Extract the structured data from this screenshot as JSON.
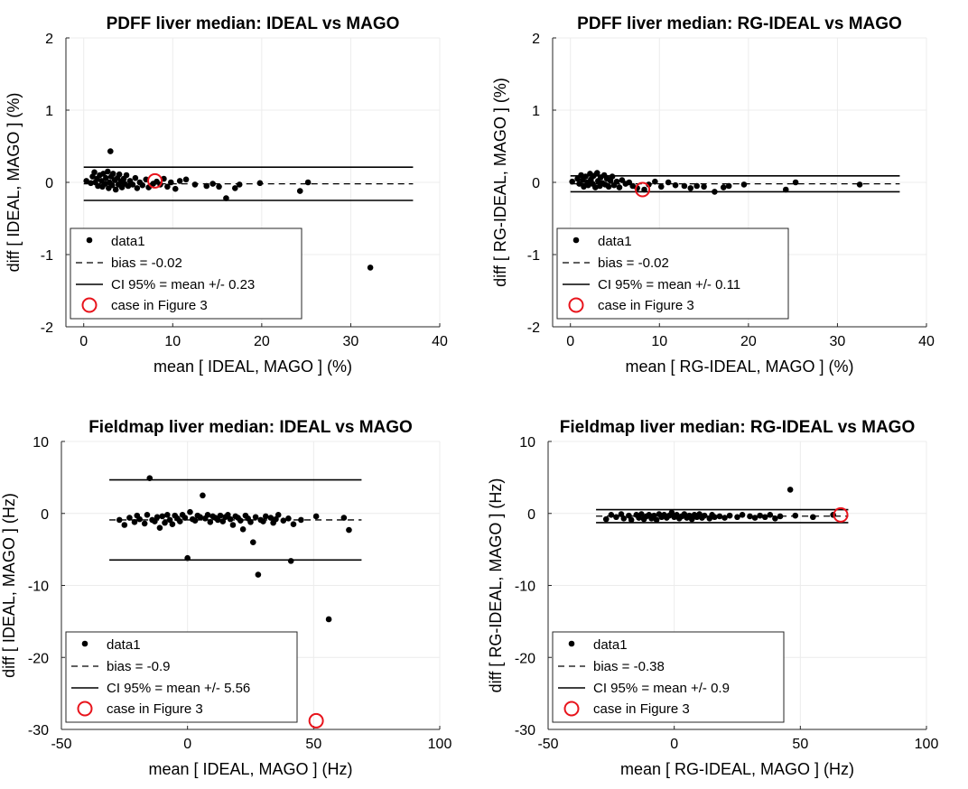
{
  "chart_data": [
    {
      "type": "scatter",
      "title": "PDFF liver median: IDEAL vs MAGO",
      "xlabel": "mean [ IDEAL, MAGO ] (%)",
      "ylabel": "diff [ IDEAL, MAGO ] (%)",
      "xlim": [
        -2,
        40
      ],
      "ylim": [
        -2,
        2
      ],
      "xticks": [
        0,
        10,
        20,
        30,
        40
      ],
      "yticks": [
        -2,
        -1,
        0,
        1,
        2
      ],
      "bias": -0.02,
      "ci_halfwidth": 0.23,
      "line_x_range": [
        0,
        37
      ],
      "points": [
        [
          0.3,
          0.02
        ],
        [
          0.8,
          -0.01
        ],
        [
          1.0,
          0.08
        ],
        [
          1.2,
          0.14
        ],
        [
          1.3,
          0.0
        ],
        [
          1.5,
          0.05
        ],
        [
          1.6,
          -0.05
        ],
        [
          1.8,
          0.1
        ],
        [
          2.0,
          0.02
        ],
        [
          2.1,
          -0.06
        ],
        [
          2.2,
          0.12
        ],
        [
          2.4,
          -0.02
        ],
        [
          2.5,
          0.06
        ],
        [
          2.7,
          0.15
        ],
        [
          2.8,
          -0.08
        ],
        [
          2.9,
          0.0
        ],
        [
          3.0,
          0.43
        ],
        [
          3.1,
          0.08
        ],
        [
          3.2,
          -0.04
        ],
        [
          3.3,
          0.12
        ],
        [
          3.5,
          0.03
        ],
        [
          3.6,
          -0.1
        ],
        [
          3.8,
          0.06
        ],
        [
          3.9,
          -0.03
        ],
        [
          4.0,
          0.11
        ],
        [
          4.2,
          0.01
        ],
        [
          4.3,
          -0.07
        ],
        [
          4.5,
          0.05
        ],
        [
          4.6,
          -0.02
        ],
        [
          4.8,
          0.1
        ],
        [
          5.0,
          -0.05
        ],
        [
          5.2,
          0.02
        ],
        [
          5.5,
          -0.03
        ],
        [
          5.8,
          0.06
        ],
        [
          6.0,
          -0.08
        ],
        [
          6.3,
          0.0
        ],
        [
          6.6,
          -0.04
        ],
        [
          7.0,
          0.04
        ],
        [
          7.3,
          -0.07
        ],
        [
          7.8,
          -0.02
        ],
        [
          8.2,
          0.01
        ],
        [
          8.6,
          -0.03
        ],
        [
          9.0,
          0.05
        ],
        [
          9.4,
          -0.06
        ],
        [
          9.8,
          0.0
        ],
        [
          10.3,
          -0.09
        ],
        [
          10.8,
          0.02
        ],
        [
          11.5,
          0.04
        ],
        [
          12.5,
          -0.03
        ],
        [
          13.8,
          -0.05
        ],
        [
          14.5,
          -0.02
        ],
        [
          15.2,
          -0.06
        ],
        [
          16.0,
          -0.22
        ],
        [
          17.0,
          -0.08
        ],
        [
          17.5,
          -0.03
        ],
        [
          19.8,
          -0.01
        ],
        [
          24.3,
          -0.12
        ],
        [
          25.2,
          0.0
        ],
        [
          32.2,
          -1.18
        ]
      ],
      "case": [
        8.0,
        0.02
      ],
      "legend": [
        "data1",
        "bias = -0.02",
        "CI 95% = mean +/- 0.23",
        "case in Figure 3"
      ]
    },
    {
      "type": "scatter",
      "title": "PDFF liver median: RG-IDEAL vs MAGO",
      "xlabel": "mean [ RG-IDEAL, MAGO ] (%)",
      "ylabel": "diff [ RG-IDEAL, MAGO ] (%)",
      "xlim": [
        -2,
        40
      ],
      "ylim": [
        -2,
        2
      ],
      "xticks": [
        0,
        10,
        20,
        30,
        40
      ],
      "yticks": [
        -2,
        -1,
        0,
        1,
        2
      ],
      "bias": -0.02,
      "ci_halfwidth": 0.11,
      "line_x_range": [
        0,
        37
      ],
      "points": [
        [
          0.2,
          0.01
        ],
        [
          0.8,
          0.05
        ],
        [
          1.0,
          -0.02
        ],
        [
          1.2,
          0.1
        ],
        [
          1.4,
          0.03
        ],
        [
          1.5,
          -0.06
        ],
        [
          1.7,
          0.08
        ],
        [
          1.9,
          0.0
        ],
        [
          2.0,
          -0.04
        ],
        [
          2.2,
          0.12
        ],
        [
          2.3,
          0.04
        ],
        [
          2.5,
          -0.02
        ],
        [
          2.6,
          0.09
        ],
        [
          2.8,
          -0.07
        ],
        [
          3.0,
          0.13
        ],
        [
          3.1,
          0.02
        ],
        [
          3.3,
          -0.05
        ],
        [
          3.4,
          0.07
        ],
        [
          3.6,
          -0.01
        ],
        [
          3.8,
          0.1
        ],
        [
          3.9,
          -0.03
        ],
        [
          4.1,
          0.05
        ],
        [
          4.3,
          -0.06
        ],
        [
          4.5,
          0.02
        ],
        [
          4.7,
          0.08
        ],
        [
          4.9,
          -0.04
        ],
        [
          5.2,
          0.01
        ],
        [
          5.5,
          -0.07
        ],
        [
          5.8,
          0.03
        ],
        [
          6.2,
          -0.02
        ],
        [
          6.6,
          0.0
        ],
        [
          7.0,
          -0.05
        ],
        [
          7.5,
          -0.08
        ],
        [
          8.3,
          -0.1
        ],
        [
          8.8,
          -0.03
        ],
        [
          9.5,
          0.01
        ],
        [
          10.2,
          -0.06
        ],
        [
          11.0,
          0.0
        ],
        [
          11.8,
          -0.04
        ],
        [
          12.8,
          -0.05
        ],
        [
          13.5,
          -0.08
        ],
        [
          14.2,
          -0.05
        ],
        [
          15.0,
          -0.06
        ],
        [
          16.2,
          -0.13
        ],
        [
          17.2,
          -0.07
        ],
        [
          17.8,
          -0.05
        ],
        [
          19.5,
          -0.03
        ],
        [
          24.2,
          -0.1
        ],
        [
          25.3,
          0.0
        ],
        [
          32.5,
          -0.03
        ]
      ],
      "case": [
        8.1,
        -0.1
      ],
      "legend": [
        "data1",
        "bias = -0.02",
        "CI 95% = mean +/- 0.11",
        "case in Figure 3"
      ]
    },
    {
      "type": "scatter",
      "title": "Fieldmap liver median: IDEAL vs MAGO",
      "xlabel": "mean [ IDEAL, MAGO ] (Hz)",
      "ylabel": "diff [ IDEAL, MAGO ] (Hz)",
      "xlim": [
        -50,
        100
      ],
      "ylim": [
        -30,
        10
      ],
      "xticks": [
        -50,
        0,
        50,
        100
      ],
      "yticks": [
        -30,
        -20,
        -10,
        0,
        10
      ],
      "bias": -0.9,
      "ci_halfwidth": 5.56,
      "line_x_range": [
        -31,
        69
      ],
      "points": [
        [
          -27,
          -0.9
        ],
        [
          -25,
          -1.6
        ],
        [
          -23,
          -0.6
        ],
        [
          -21,
          -1.2
        ],
        [
          -20,
          -0.3
        ],
        [
          -19,
          -0.8
        ],
        [
          -17,
          -1.4
        ],
        [
          -16,
          -0.2
        ],
        [
          -15,
          4.9
        ],
        [
          -14,
          -0.9
        ],
        [
          -13,
          -1.1
        ],
        [
          -12,
          -0.5
        ],
        [
          -11,
          -2.0
        ],
        [
          -10,
          -0.4
        ],
        [
          -9,
          -1.3
        ],
        [
          -8,
          -0.2
        ],
        [
          -7,
          -0.9
        ],
        [
          -6,
          -1.5
        ],
        [
          -5,
          -0.3
        ],
        [
          -4,
          -0.7
        ],
        [
          -3,
          -1.1
        ],
        [
          -2,
          -0.2
        ],
        [
          -1,
          -0.6
        ],
        [
          0,
          -6.2
        ],
        [
          1,
          0.2
        ],
        [
          2,
          -0.8
        ],
        [
          3,
          -1.0
        ],
        [
          4,
          -0.3
        ],
        [
          5,
          -0.5
        ],
        [
          6,
          2.5
        ],
        [
          7,
          -0.7
        ],
        [
          8,
          -0.2
        ],
        [
          9,
          -1.2
        ],
        [
          10,
          -0.4
        ],
        [
          11,
          -0.6
        ],
        [
          12,
          -0.9
        ],
        [
          13,
          -0.3
        ],
        [
          14,
          -1.1
        ],
        [
          15,
          -0.5
        ],
        [
          16,
          -0.2
        ],
        [
          17,
          -0.8
        ],
        [
          18,
          -1.6
        ],
        [
          19,
          -0.4
        ],
        [
          20,
          -0.6
        ],
        [
          21,
          -1.0
        ],
        [
          22,
          -2.2
        ],
        [
          23,
          -0.3
        ],
        [
          24,
          -0.7
        ],
        [
          25,
          -1.2
        ],
        [
          26,
          -4.0
        ],
        [
          27,
          -0.5
        ],
        [
          28,
          -8.5
        ],
        [
          29,
          -0.9
        ],
        [
          30,
          -1.1
        ],
        [
          31,
          -0.4
        ],
        [
          33,
          -0.6
        ],
        [
          34,
          -1.3
        ],
        [
          35,
          -0.8
        ],
        [
          36,
          -0.2
        ],
        [
          38,
          -1.0
        ],
        [
          40,
          -0.7
        ],
        [
          41,
          -6.6
        ],
        [
          42,
          -1.5
        ],
        [
          45,
          -0.9
        ],
        [
          51,
          -0.4
        ],
        [
          56,
          -14.7
        ],
        [
          62,
          -0.6
        ],
        [
          64,
          -2.3
        ]
      ],
      "case": [
        51,
        -28.8
      ],
      "legend": [
        "data1",
        "bias = -0.9",
        "CI 95% = mean +/- 5.56",
        "case in Figure 3"
      ]
    },
    {
      "type": "scatter",
      "title": "Fieldmap liver median: RG-IDEAL vs MAGO",
      "xlabel": "mean [ RG-IDEAL, MAGO ] (Hz)",
      "ylabel": "diff [ RG-IDEAL, MAGO ] (Hz)",
      "xlim": [
        -50,
        100
      ],
      "ylim": [
        -30,
        10
      ],
      "xticks": [
        -50,
        0,
        50,
        100
      ],
      "yticks": [
        -30,
        -20,
        -10,
        0,
        10
      ],
      "bias": -0.38,
      "ci_halfwidth": 0.9,
      "line_x_range": [
        -31,
        69
      ],
      "points": [
        [
          -27,
          -0.8
        ],
        [
          -25,
          -0.2
        ],
        [
          -23,
          -0.5
        ],
        [
          -21,
          -0.1
        ],
        [
          -20,
          -0.7
        ],
        [
          -18,
          -0.3
        ],
        [
          -17,
          -0.9
        ],
        [
          -15,
          -0.2
        ],
        [
          -14,
          -0.6
        ],
        [
          -13,
          -0.1
        ],
        [
          -12,
          -0.8
        ],
        [
          -11,
          -0.4
        ],
        [
          -10,
          -0.2
        ],
        [
          -9,
          -0.7
        ],
        [
          -8,
          -0.3
        ],
        [
          -7,
          -0.9
        ],
        [
          -6,
          -0.1
        ],
        [
          -5,
          -0.5
        ],
        [
          -4,
          -0.2
        ],
        [
          -3,
          -0.6
        ],
        [
          -2,
          -0.3
        ],
        [
          -1,
          0.1
        ],
        [
          0,
          -0.5
        ],
        [
          1,
          -0.2
        ],
        [
          2,
          -0.7
        ],
        [
          3,
          -0.4
        ],
        [
          4,
          -0.1
        ],
        [
          5,
          -0.6
        ],
        [
          6,
          -0.3
        ],
        [
          7,
          -0.8
        ],
        [
          8,
          -0.2
        ],
        [
          9,
          -0.5
        ],
        [
          10,
          -0.1
        ],
        [
          11,
          -0.6
        ],
        [
          12,
          -0.3
        ],
        [
          14,
          -0.7
        ],
        [
          15,
          -0.2
        ],
        [
          16,
          -0.5
        ],
        [
          18,
          -0.4
        ],
        [
          20,
          -0.6
        ],
        [
          22,
          -0.3
        ],
        [
          25,
          -0.5
        ],
        [
          27,
          -0.2
        ],
        [
          30,
          -0.4
        ],
        [
          32,
          -0.6
        ],
        [
          34,
          -0.3
        ],
        [
          36,
          -0.5
        ],
        [
          38,
          -0.2
        ],
        [
          40,
          -0.7
        ],
        [
          42,
          -0.4
        ],
        [
          46,
          3.3
        ],
        [
          48,
          -0.3
        ],
        [
          55,
          -0.5
        ],
        [
          63,
          -0.2
        ]
      ],
      "case": [
        66,
        -0.2
      ],
      "legend": [
        "data1",
        "bias = -0.38",
        "CI 95% = mean +/- 0.9",
        "case in Figure 3"
      ]
    }
  ]
}
